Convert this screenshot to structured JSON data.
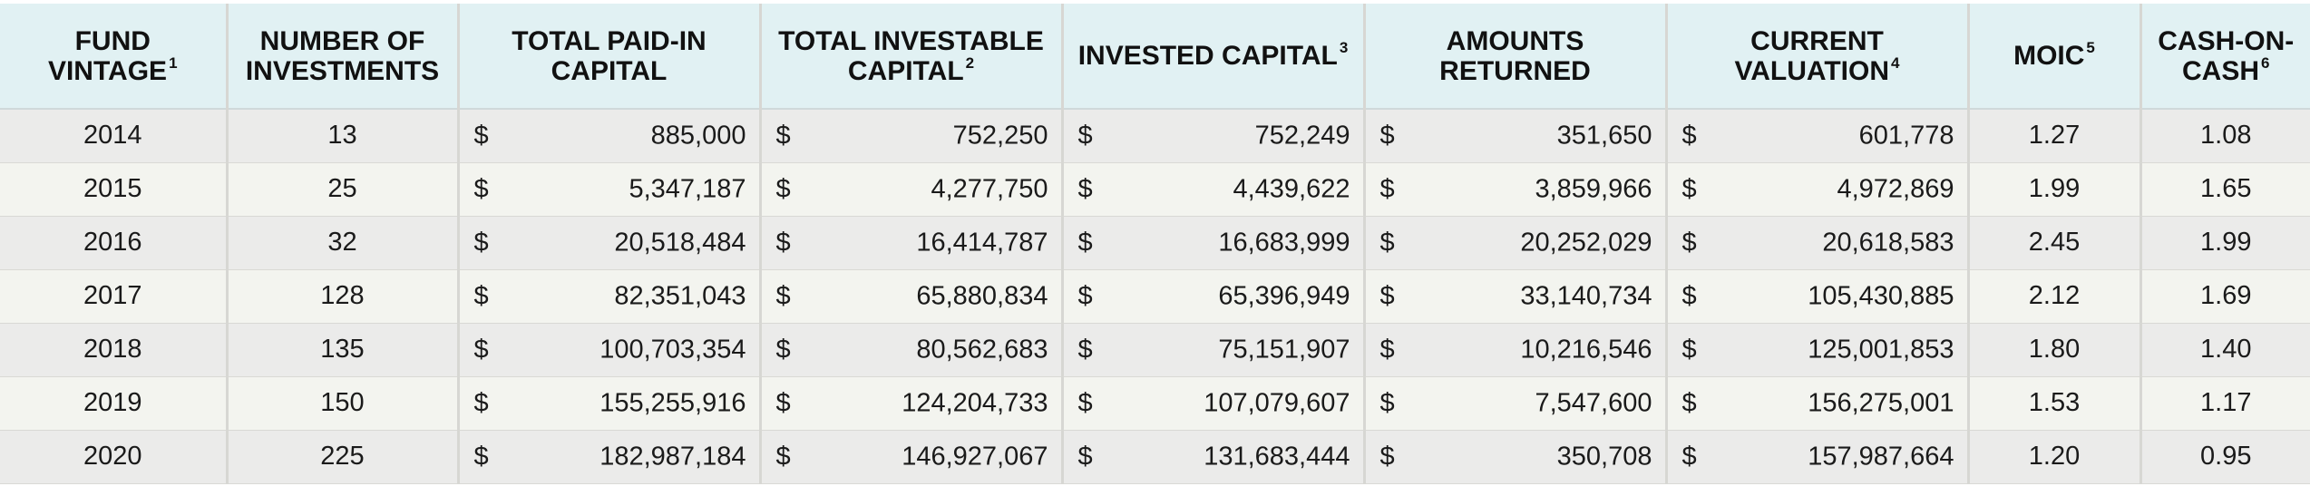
{
  "table": {
    "headers": [
      {
        "line1": "FUND",
        "line2": "VINTAGE",
        "note": "1"
      },
      {
        "line1": "NUMBER OF",
        "line2": "INVESTMENTS",
        "note": ""
      },
      {
        "line1": "TOTAL PAID-IN",
        "line2": "CAPITAL",
        "note": ""
      },
      {
        "line1": "TOTAL INVESTABLE",
        "line2": "CAPITAL",
        "note": "2"
      },
      {
        "line1": "INVESTED CAPITAL",
        "line2": "",
        "note": "3"
      },
      {
        "line1": "AMOUNTS",
        "line2": "RETURNED",
        "note": ""
      },
      {
        "line1": "CURRENT",
        "line2": "VALUATION",
        "note": "4"
      },
      {
        "line1": "MOIC",
        "line2": "",
        "note": "5"
      },
      {
        "line1": "CASH-ON-",
        "line2": "CASH",
        "note": "6"
      }
    ],
    "currency_symbol": "$",
    "rows": [
      {
        "vintage": "2014",
        "investments": "13",
        "paid_in": "885,000",
        "investable": "752,250",
        "invested": "752,249",
        "returned": "351,650",
        "valuation": "601,778",
        "moic": "1.27",
        "coc": "1.08"
      },
      {
        "vintage": "2015",
        "investments": "25",
        "paid_in": "5,347,187",
        "investable": "4,277,750",
        "invested": "4,439,622",
        "returned": "3,859,966",
        "valuation": "4,972,869",
        "moic": "1.99",
        "coc": "1.65"
      },
      {
        "vintage": "2016",
        "investments": "32",
        "paid_in": "20,518,484",
        "investable": "16,414,787",
        "invested": "16,683,999",
        "returned": "20,252,029",
        "valuation": "20,618,583",
        "moic": "2.45",
        "coc": "1.99"
      },
      {
        "vintage": "2017",
        "investments": "128",
        "paid_in": "82,351,043",
        "investable": "65,880,834",
        "invested": "65,396,949",
        "returned": "33,140,734",
        "valuation": "105,430,885",
        "moic": "2.12",
        "coc": "1.69"
      },
      {
        "vintage": "2018",
        "investments": "135",
        "paid_in": "100,703,354",
        "investable": "80,562,683",
        "invested": "75,151,907",
        "returned": "10,216,546",
        "valuation": "125,001,853",
        "moic": "1.80",
        "coc": "1.40"
      },
      {
        "vintage": "2019",
        "investments": "150",
        "paid_in": "155,255,916",
        "investable": "124,204,733",
        "invested": "107,079,607",
        "returned": "7,547,600",
        "valuation": "156,275,001",
        "moic": "1.53",
        "coc": "1.17"
      },
      {
        "vintage": "2020",
        "investments": "225",
        "paid_in": "182,987,184",
        "investable": "146,927,067",
        "invested": "131,683,444",
        "returned": "350,708",
        "valuation": "157,987,664",
        "moic": "1.20",
        "coc": "0.95"
      }
    ]
  },
  "colors": {
    "header_bg": "#e1f1f3",
    "row_odd_bg": "#ebebea",
    "row_even_bg": "#f3f4ef",
    "divider": "#d7d7d3"
  }
}
